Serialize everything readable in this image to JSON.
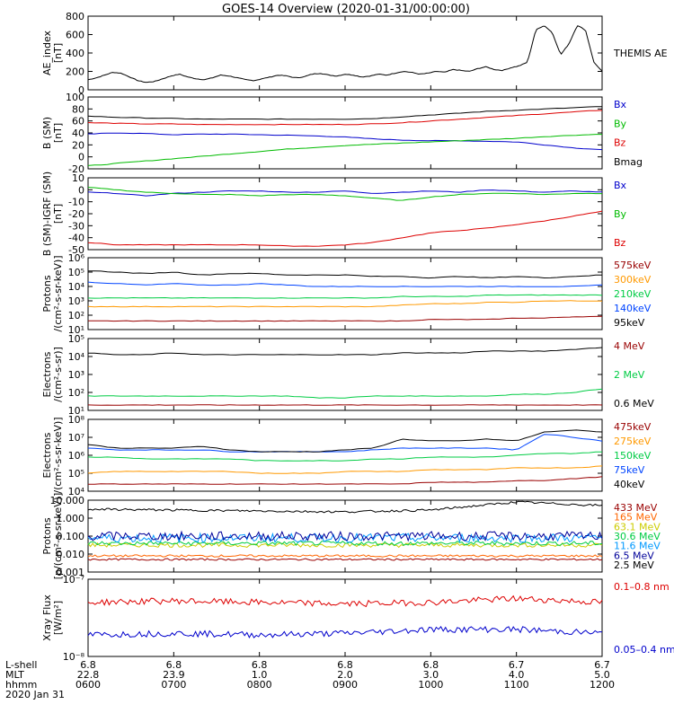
{
  "title": "GOES-14 Overview (2020-01-31/00:00:00)",
  "chart_data": {
    "type": "line",
    "x": {
      "ticks": [
        "0600",
        "0700",
        "0800",
        "0900",
        "1000",
        "1100",
        "1200"
      ],
      "lshell": [
        "6.8",
        "6.8",
        "6.8",
        "6.8",
        "6.8",
        "6.7",
        "6.7"
      ],
      "mlt": [
        "22.8",
        "23.9",
        "1.0",
        "2.0",
        "3.0",
        "4.0",
        "5.0"
      ],
      "labels": [
        "L-shell",
        "MLT",
        "hhmm",
        "2020 Jan 31"
      ]
    },
    "panels": [
      {
        "id": "ae",
        "ylabel": [
          "AE_index",
          "[nT]"
        ],
        "ylim": [
          0,
          800
        ],
        "ticks": [
          "0",
          "200",
          "400",
          "600",
          "800"
        ],
        "legend": [
          {
            "text": "THEMIS AE",
            "color": "#000000"
          }
        ],
        "series": [
          {
            "name": "THEMIS AE",
            "color": "#000000",
            "values": [
              110,
              130,
              160,
              190,
              180,
              140,
              100,
              80,
              90,
              120,
              150,
              170,
              140,
              120,
              110,
              130,
              160,
              150,
              130,
              110,
              100,
              120,
              140,
              160,
              150,
              130,
              140,
              170,
              180,
              160,
              150,
              170,
              160,
              140,
              150,
              170,
              160,
              180,
              200,
              190,
              170,
              180,
              200,
              190,
              220,
              210,
              200,
              230,
              250,
              220,
              210,
              240,
              260,
              300,
              650,
              700,
              620,
              380,
              500,
              700,
              650,
              300,
              200
            ]
          }
        ]
      },
      {
        "id": "bsm",
        "ylabel": [
          "B (SM)",
          "[nT]"
        ],
        "ylim": [
          -20,
          100
        ],
        "ticks": [
          "-20",
          "0",
          "20",
          "40",
          "60",
          "80",
          "100"
        ],
        "legend": [
          {
            "text": "Bx",
            "color": "#0000cc"
          },
          {
            "text": "By",
            "color": "#00bb00"
          },
          {
            "text": "Bz",
            "color": "#dd0000"
          },
          {
            "text": "Bmag",
            "color": "#000000"
          }
        ],
        "series": [
          {
            "name": "Bx",
            "color": "#0000cc",
            "values": [
              38,
              40,
              39,
              37,
              38,
              38,
              37,
              36,
              35,
              33,
              30,
              28,
              27,
              27,
              26,
              25,
              20,
              15,
              12
            ]
          },
          {
            "name": "By",
            "color": "#00bb00",
            "values": [
              -15,
              -11,
              -7,
              -3,
              1,
              5,
              9,
              13,
              16,
              19,
              21,
              23,
              25,
              27,
              29,
              31,
              34,
              36,
              38
            ]
          },
          {
            "name": "Bz",
            "color": "#dd0000",
            "values": [
              57,
              56,
              55,
              55,
              54,
              54,
              54,
              54,
              54,
              54,
              55,
              57,
              60,
              63,
              66,
              69,
              72,
              75,
              78
            ]
          },
          {
            "name": "Bmag",
            "color": "#000000",
            "values": [
              68,
              66,
              65,
              64,
              63,
              63,
              63,
              63,
              63,
              63,
              64,
              67,
              70,
              73,
              76,
              78,
              80,
              82,
              84
            ]
          }
        ]
      },
      {
        "id": "bigrf",
        "ylabel": [
          "B (SM)-IGRF (SM)",
          "[nT]"
        ],
        "ylim": [
          -50,
          10
        ],
        "ticks": [
          "-50",
          "-40",
          "-30",
          "-20",
          "-10",
          "0",
          "10"
        ],
        "legend": [
          {
            "text": "Bx",
            "color": "#0000cc"
          },
          {
            "text": "By",
            "color": "#00bb00"
          },
          {
            "text": "Bz",
            "color": "#dd0000"
          }
        ],
        "series": [
          {
            "name": "Bx",
            "color": "#0000cc",
            "values": [
              -2,
              -3,
              -5,
              -3,
              -2,
              -1,
              -1,
              -2,
              -2,
              -1,
              -3,
              -2,
              -1,
              -2,
              0,
              -1,
              -2,
              -1,
              -2
            ]
          },
          {
            "name": "By",
            "color": "#00bb00",
            "values": [
              2,
              0,
              -2,
              -3,
              -4,
              -4,
              -5,
              -4,
              -4,
              -5,
              -7,
              -9,
              -6,
              -4,
              -3,
              -3,
              -4,
              -3,
              -3
            ]
          },
          {
            "name": "Bz",
            "color": "#dd0000",
            "values": [
              -44,
              -46,
              -46,
              -46,
              -46,
              -46,
              -46,
              -47,
              -47,
              -46,
              -44,
              -40,
              -36,
              -34,
              -32,
              -29,
              -26,
              -22,
              -18
            ]
          }
        ]
      },
      {
        "id": "protons",
        "ylabel": [
          "Protons",
          "/(cm²-s-sr-keV)]"
        ],
        "log": true,
        "ylim": [
          1,
          6
        ],
        "ticks": [
          "10¹",
          "10²",
          "10³",
          "10⁴",
          "10⁵",
          "10⁶"
        ],
        "legend": [
          {
            "text": "575keV",
            "color": "#990000"
          },
          {
            "text": "300keV",
            "color": "#ff9900"
          },
          {
            "text": "210keV",
            "color": "#00cc44"
          },
          {
            "text": "140keV",
            "color": "#0044ff"
          },
          {
            "text": "95keV",
            "color": "#000000"
          }
        ],
        "series": [
          {
            "name": "575keV",
            "color": "#990000",
            "values": [
              1.6,
              1.6,
              1.6,
              1.6,
              1.6,
              1.6,
              1.6,
              1.6,
              1.6,
              1.6,
              1.6,
              1.6,
              1.7,
              1.7,
              1.7,
              1.8,
              1.8,
              1.9,
              1.9
            ]
          },
          {
            "name": "300keV",
            "color": "#ff9900",
            "values": [
              2.6,
              2.6,
              2.6,
              2.6,
              2.6,
              2.6,
              2.6,
              2.6,
              2.6,
              2.6,
              2.6,
              2.7,
              2.8,
              2.8,
              2.9,
              2.9,
              3.0,
              3.0,
              3.0
            ]
          },
          {
            "name": "210keV",
            "color": "#00cc44",
            "values": [
              3.2,
              3.2,
              3.2,
              3.2,
              3.2,
              3.2,
              3.2,
              3.2,
              3.2,
              3.2,
              3.2,
              3.3,
              3.3,
              3.3,
              3.4,
              3.4,
              3.4,
              3.4,
              3.4
            ]
          },
          {
            "name": "140keV",
            "color": "#0044ff",
            "values": [
              4.3,
              4.2,
              4.1,
              4.2,
              4.1,
              4.1,
              4.2,
              4.1,
              4.0,
              4.0,
              4.0,
              4.0,
              4.0,
              4.0,
              4.0,
              4.0,
              4.0,
              4.0,
              4.1
            ]
          },
          {
            "name": "95keV",
            "color": "#000000",
            "values": [
              5.1,
              5.0,
              4.9,
              5.0,
              4.8,
              4.9,
              4.9,
              4.8,
              4.8,
              4.8,
              4.7,
              4.7,
              4.6,
              4.7,
              4.6,
              4.7,
              4.6,
              4.7,
              4.8
            ]
          }
        ]
      },
      {
        "id": "electrons1",
        "ylabel": [
          "Electrons",
          "/(cm²-s-sr)]"
        ],
        "log": true,
        "ylim": [
          1,
          5
        ],
        "ticks": [
          "10¹",
          "10²",
          "10³",
          "10⁴",
          "10⁵"
        ],
        "legend": [
          {
            "text": "4 MeV",
            "color": "#990000"
          },
          {
            "text": "2 MeV",
            "color": "#00cc44"
          },
          {
            "text": "0.6 MeV",
            "color": "#000000"
          }
        ],
        "series": [
          {
            "name": "4 MeV",
            "color": "#990000",
            "values": [
              1.3,
              1.3,
              1.3,
              1.3,
              1.3,
              1.3,
              1.3,
              1.3,
              1.3,
              1.3,
              1.3,
              1.3,
              1.3,
              1.3,
              1.3,
              1.3,
              1.3,
              1.3,
              1.3
            ]
          },
          {
            "name": "2 MeV",
            "color": "#00cc44",
            "values": [
              1.8,
              1.8,
              1.8,
              1.8,
              1.8,
              1.8,
              1.8,
              1.8,
              1.7,
              1.7,
              1.8,
              1.8,
              1.8,
              1.8,
              1.8,
              1.9,
              1.9,
              2.0,
              2.2
            ]
          },
          {
            "name": "0.6 MeV",
            "color": "#000000",
            "values": [
              4.2,
              4.1,
              4.1,
              4.2,
              4.1,
              4.1,
              4.1,
              4.1,
              4.1,
              4.1,
              4.1,
              4.2,
              4.2,
              4.2,
              4.3,
              4.3,
              4.3,
              4.4,
              4.5
            ]
          }
        ]
      },
      {
        "id": "electrons2",
        "ylabel": [
          "Electrons",
          "/(cm²-s-sr-keV)]"
        ],
        "log": true,
        "ylim": [
          4,
          8
        ],
        "ticks": [
          "10⁴",
          "10⁵",
          "10⁶",
          "10⁷",
          "10⁸"
        ],
        "legend": [
          {
            "text": "475keV",
            "color": "#990000"
          },
          {
            "text": "275keV",
            "color": "#ff9900"
          },
          {
            "text": "150keV",
            "color": "#00cc44"
          },
          {
            "text": "75keV",
            "color": "#0044ff"
          },
          {
            "text": "40keV",
            "color": "#000000"
          }
        ],
        "series": [
          {
            "name": "475keV",
            "color": "#990000",
            "values": [
              4.4,
              4.4,
              4.4,
              4.4,
              4.4,
              4.4,
              4.4,
              4.4,
              4.4,
              4.4,
              4.4,
              4.4,
              4.5,
              4.5,
              4.5,
              4.6,
              4.6,
              4.7,
              4.8
            ]
          },
          {
            "name": "275keV",
            "color": "#ff9900",
            "values": [
              5.0,
              5.1,
              5.1,
              5.1,
              5.1,
              5.1,
              5.0,
              5.0,
              5.0,
              5.1,
              5.1,
              5.1,
              5.2,
              5.2,
              5.2,
              5.3,
              5.3,
              5.3,
              5.4
            ]
          },
          {
            "name": "150keV",
            "color": "#00cc44",
            "values": [
              5.9,
              5.9,
              5.8,
              5.8,
              5.8,
              5.8,
              5.7,
              5.7,
              5.7,
              5.7,
              5.8,
              5.8,
              5.9,
              5.9,
              5.9,
              6.0,
              6.1,
              6.1,
              6.2
            ]
          },
          {
            "name": "75keV",
            "color": "#0044ff",
            "values": [
              6.4,
              6.3,
              6.3,
              6.3,
              6.3,
              6.2,
              6.2,
              6.2,
              6.2,
              6.2,
              6.3,
              6.4,
              6.4,
              6.4,
              6.4,
              6.3,
              7.2,
              7.0,
              6.8
            ]
          },
          {
            "name": "40keV",
            "color": "#000000",
            "values": [
              6.6,
              6.4,
              6.4,
              6.4,
              6.5,
              6.3,
              6.2,
              6.2,
              6.2,
              6.3,
              6.4,
              6.9,
              6.8,
              6.8,
              6.9,
              6.8,
              7.3,
              7.4,
              7.3
            ]
          }
        ]
      },
      {
        "id": "protons2",
        "ylabel": [
          "Protons",
          "[p/(cm²-s-sr-keV)]"
        ],
        "log": true,
        "ylim": [
          -3,
          1
        ],
        "ticks": [
          "0.001",
          "0.010",
          "0.100",
          "1.000",
          "10.000"
        ],
        "legend": [
          {
            "text": "433 MeV",
            "color": "#990000"
          },
          {
            "text": "165 MeV",
            "color": "#ff6600"
          },
          {
            "text": "63.1 MeV",
            "color": "#cccc00"
          },
          {
            "text": "30.6 MeV",
            "color": "#00cc44"
          },
          {
            "text": "11.6 MeV",
            "color": "#0099ff"
          },
          {
            "text": "6.5 MeV",
            "color": "#000099"
          },
          {
            "text": "2.5 MeV",
            "color": "#000000"
          }
        ],
        "series": [
          {
            "name": "433 MeV",
            "color": "#990000",
            "noise": 0.05,
            "values": [
              -2.3,
              -2.3,
              -2.3,
              -2.3,
              -2.3,
              -2.3,
              -2.3
            ]
          },
          {
            "name": "165 MeV",
            "color": "#ff6600",
            "noise": 0.06,
            "values": [
              -2.1,
              -2.1,
              -2.1,
              -2.1,
              -2.1,
              -2.1,
              -2.1
            ]
          },
          {
            "name": "63.1 MeV",
            "color": "#cccc00",
            "noise": 0.12,
            "values": [
              -1.5,
              -1.5,
              -1.5,
              -1.5,
              -1.5,
              -1.5,
              -1.5
            ]
          },
          {
            "name": "30.6 MeV",
            "color": "#00cc44",
            "noise": 0.12,
            "values": [
              -1.4,
              -1.4,
              -1.4,
              -1.4,
              -1.4,
              -1.4,
              -1.4
            ]
          },
          {
            "name": "11.6 MeV",
            "color": "#0099ff",
            "noise": 0.25,
            "values": [
              -1.1,
              -1.1,
              -1.1,
              -1.1,
              -1.1,
              -1.1,
              -1.1
            ]
          },
          {
            "name": "6.5 MeV",
            "color": "#000099",
            "noise": 0.25,
            "values": [
              -1.0,
              -1.0,
              -1.0,
              -1.0,
              -1.0,
              -1.0,
              -1.0
            ]
          },
          {
            "name": "2.5 MeV",
            "color": "#000000",
            "noise": 0.06,
            "values": [
              0.5,
              0.45,
              0.4,
              0.35,
              0.45,
              0.9,
              0.7
            ]
          }
        ]
      },
      {
        "id": "xray",
        "ylabel": [
          "Xray Flux",
          "[W/m²]"
        ],
        "log": true,
        "ylim": [
          -8,
          -7
        ],
        "ticks": [
          "10⁻⁸",
          "10⁻⁷"
        ],
        "legend": [
          {
            "text": "0.1–0.8 nm",
            "color": "#dd0000"
          },
          {
            "text": "0.05–0.4 nm",
            "color": "#0000cc"
          }
        ],
        "series": [
          {
            "name": "0.1-0.8 nm",
            "color": "#dd0000",
            "noise": 0.04,
            "values": [
              -7.3,
              -7.28,
              -7.3,
              -7.32,
              -7.3,
              -7.25,
              -7.3
            ]
          },
          {
            "name": "0.05-0.4 nm",
            "color": "#0000cc",
            "noise": 0.04,
            "values": [
              -7.72,
              -7.7,
              -7.72,
              -7.7,
              -7.65,
              -7.65,
              -7.7
            ]
          }
        ]
      }
    ]
  }
}
